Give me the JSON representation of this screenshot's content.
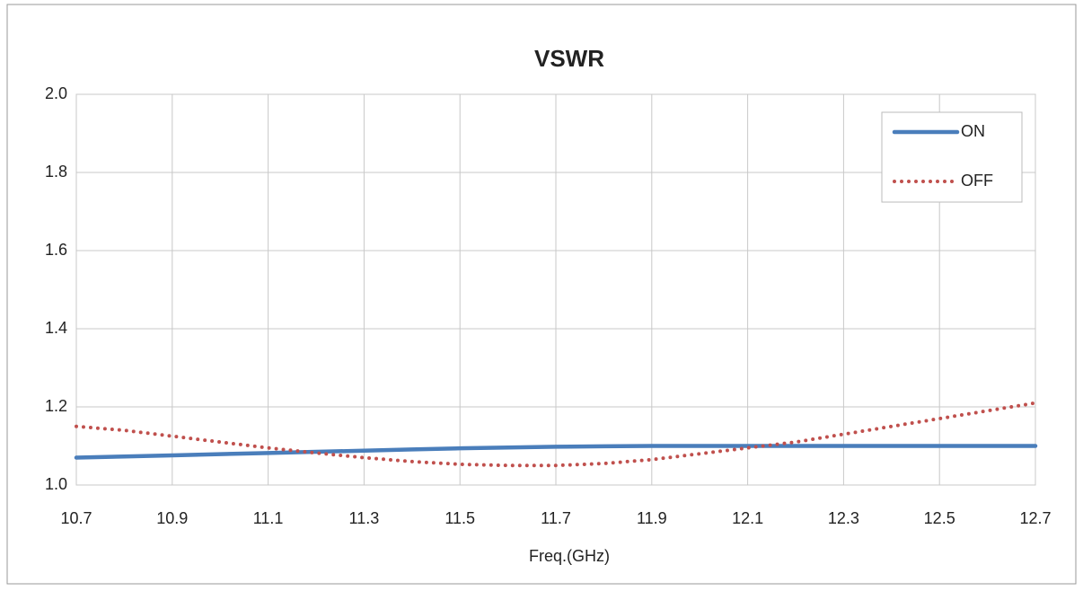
{
  "chart_data": {
    "type": "line",
    "title": "VSWR",
    "x_label": "Freq.(GHz)",
    "x": [
      10.7,
      10.8,
      10.9,
      11.0,
      11.1,
      11.2,
      11.3,
      11.4,
      11.5,
      11.6,
      11.7,
      11.8,
      11.9,
      12.0,
      12.1,
      12.2,
      12.3,
      12.4,
      12.5,
      12.6,
      12.7
    ],
    "series": [
      {
        "name": "ON",
        "color": "#4a7ebb",
        "style": "solid",
        "values": [
          1.07,
          1.073,
          1.076,
          1.079,
          1.082,
          1.085,
          1.088,
          1.091,
          1.094,
          1.096,
          1.098,
          1.099,
          1.1,
          1.1,
          1.1,
          1.1,
          1.1,
          1.1,
          1.1,
          1.1,
          1.1
        ]
      },
      {
        "name": "OFF",
        "color": "#c0504d",
        "style": "dotted",
        "values": [
          1.15,
          1.14,
          1.125,
          1.11,
          1.095,
          1.082,
          1.07,
          1.06,
          1.053,
          1.05,
          1.05,
          1.055,
          1.065,
          1.08,
          1.095,
          1.11,
          1.13,
          1.15,
          1.17,
          1.19,
          1.21
        ]
      }
    ],
    "xlim": [
      10.7,
      12.7
    ],
    "xticks": [
      10.7,
      10.9,
      11.1,
      11.3,
      11.5,
      11.7,
      11.9,
      12.1,
      12.3,
      12.5,
      12.7
    ],
    "ylim": [
      1.0,
      2.0
    ],
    "yticks": [
      {
        "value": 1.0,
        "label": "1.0"
      },
      1.2,
      1.4,
      1.6,
      1.8,
      {
        "value": 2.0,
        "label": "2.0"
      }
    ],
    "grid": true,
    "legend": "upper right"
  }
}
